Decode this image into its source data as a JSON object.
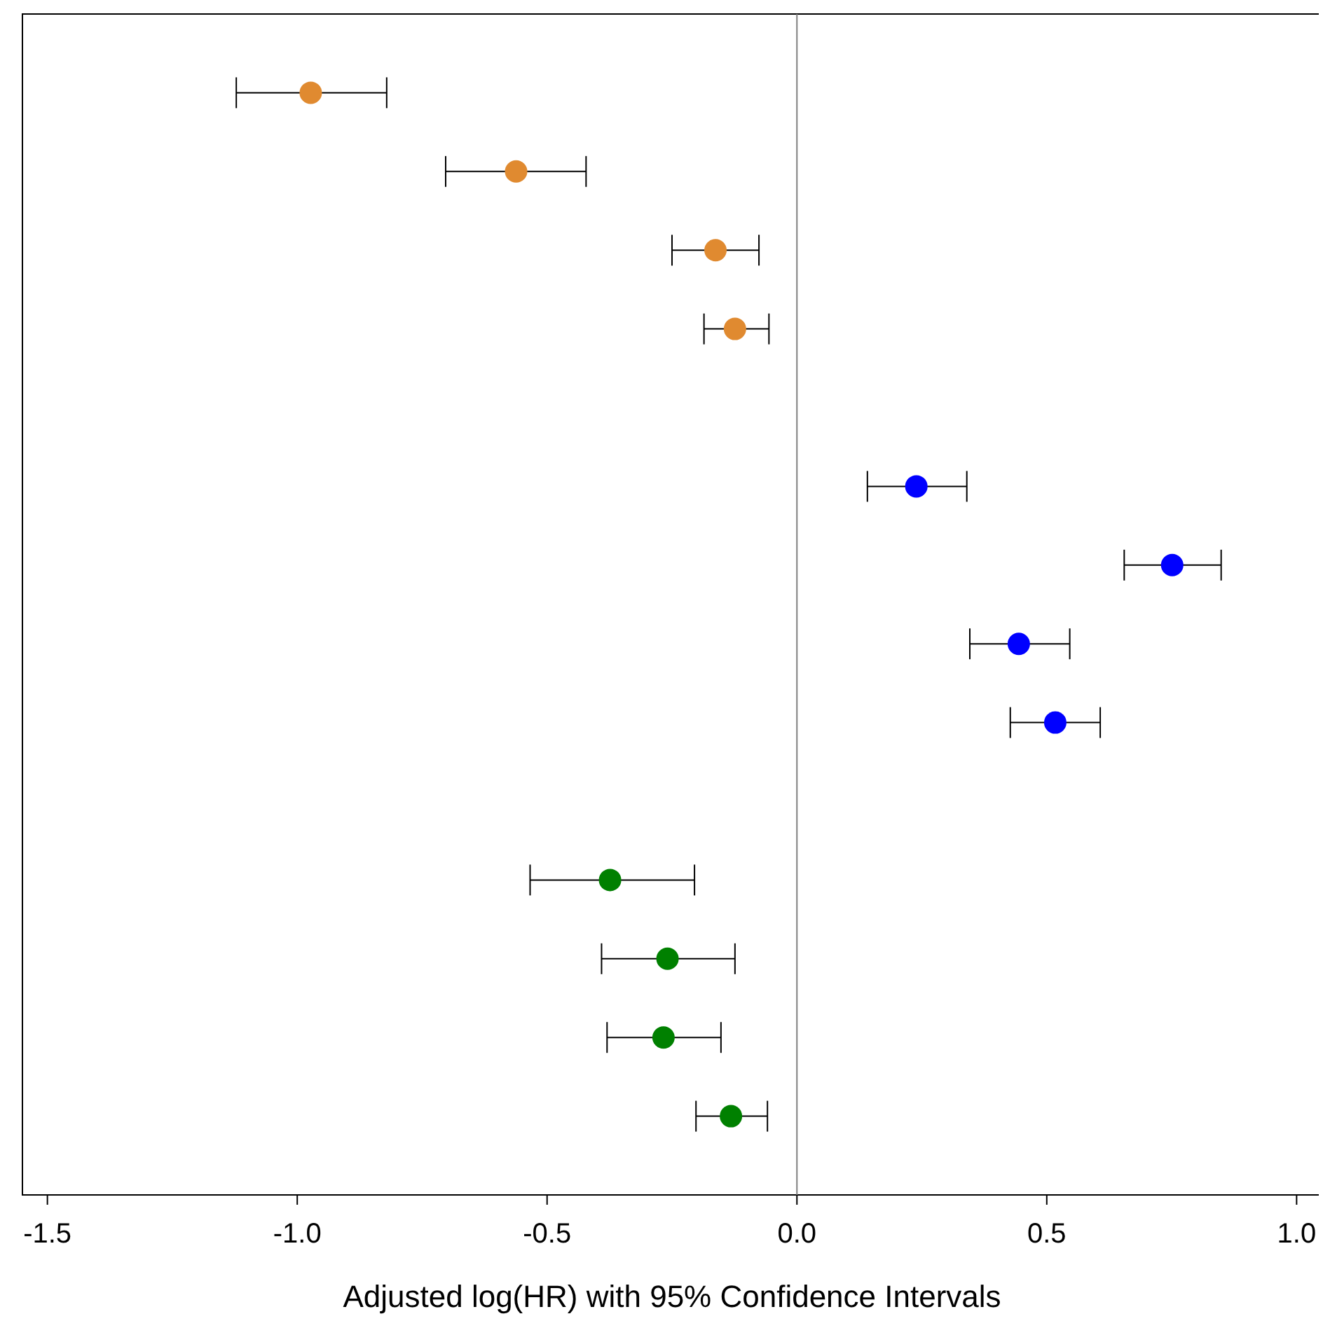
{
  "chart_data": {
    "type": "scatter",
    "orientation": "horizontal",
    "xlabel": "Adjusted log(HR) with 95% Confidence Intervals",
    "categories": [
      null,
      null,
      null,
      null,
      null,
      null,
      null,
      null,
      null,
      null,
      null,
      null,
      null,
      null
    ],
    "series": [
      {
        "color": "#e08a30",
        "values": [
          -0.973,
          -0.562,
          -0.163,
          -0.124,
          null,
          null,
          null,
          null,
          null,
          null,
          null,
          null,
          null,
          null
        ],
        "errors": [
          [
            -1.122,
            -0.821
          ],
          [
            -0.703,
            -0.422
          ],
          [
            -0.25,
            -0.076
          ],
          [
            -0.186,
            -0.056
          ],
          null,
          null,
          null,
          null,
          null,
          null,
          null,
          null,
          null,
          null
        ]
      },
      {
        "color": "#0000ff",
        "values": [
          null,
          null,
          null,
          null,
          null,
          0.239,
          0.751,
          0.444,
          0.517,
          null,
          null,
          null,
          null,
          null
        ],
        "errors": [
          null,
          null,
          null,
          null,
          null,
          [
            0.141,
            0.34
          ],
          [
            0.655,
            0.849
          ],
          [
            0.346,
            0.546
          ],
          [
            0.427,
            0.607
          ],
          null,
          null,
          null,
          null,
          null
        ]
      },
      {
        "color": "#008000",
        "values": [
          null,
          null,
          null,
          null,
          null,
          null,
          null,
          null,
          null,
          null,
          -0.374,
          -0.259,
          -0.267,
          -0.132
        ],
        "errors": [
          null,
          null,
          null,
          null,
          null,
          null,
          null,
          null,
          null,
          null,
          [
            -0.534,
            -0.205
          ],
          [
            -0.391,
            -0.124
          ],
          [
            -0.38,
            -0.152
          ],
          [
            -0.202,
            -0.059
          ]
        ]
      }
    ],
    "xlim": [
      -1.55,
      1.05
    ],
    "xticks": [
      {
        "value": -1.5,
        "label": "-1.5"
      },
      {
        "value": -1,
        "label": "-1.0"
      },
      {
        "value": -0.5,
        "label": "-0.5"
      },
      {
        "value": 0,
        "label": "0.0"
      },
      {
        "value": 0.5,
        "label": "0.5"
      },
      {
        "value": 1,
        "label": "1.0"
      }
    ],
    "ref_lines": [
      {
        "axis": "x",
        "value": 0,
        "color": "#808080"
      }
    ],
    "tick_labels": "x",
    "marker": "circle"
  }
}
